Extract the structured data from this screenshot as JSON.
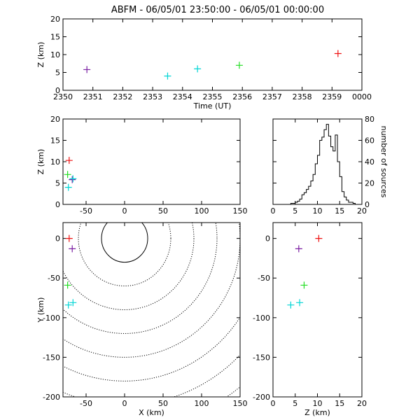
{
  "title": "ABFM - 06/05/01 23:50:00 - 06/05/01 00:00:00",
  "colors": {
    "axes": "#000000",
    "contour": "#000000"
  },
  "sources": [
    {
      "color": "#7b1fa2",
      "time": 2350.8,
      "x": -68,
      "y": -13,
      "z": 5.8
    },
    {
      "color": "#00d5d5",
      "time": 2353.5,
      "x": -73,
      "y": -84,
      "z": 4.0
    },
    {
      "color": "#00d5d5",
      "time": 2354.5,
      "x": -67,
      "y": -81,
      "z": 6.0
    },
    {
      "color": "#22dd22",
      "time": 2355.9,
      "x": -74,
      "y": -59,
      "z": 7.0
    },
    {
      "color": "#ee1111",
      "time": 2359.2,
      "x": -72,
      "y": 0,
      "z": 10.3
    }
  ],
  "chart_data": [
    {
      "id": "time_z",
      "type": "scatter",
      "title": "ABFM - 06/05/01 23:50:00 - 06/05/01 00:00:00",
      "xlabel": "Time (UT)",
      "ylabel": "Z (km)",
      "xlim": [
        2350,
        2360
      ],
      "ylim": [
        0,
        20
      ],
      "xtick_labels": [
        "2350",
        "2351",
        "2352",
        "2353",
        "2354",
        "2355",
        "2356",
        "2357",
        "2358",
        "2359",
        "0000"
      ],
      "yticks": [
        0,
        5,
        10,
        15,
        20
      ],
      "marker": "+",
      "x_field": "time",
      "y_field": "z"
    },
    {
      "id": "x_z",
      "type": "scatter",
      "xlabel": "",
      "ylabel": "Z (km)",
      "xlim": [
        -80,
        150
      ],
      "ylim": [
        0,
        20
      ],
      "xticks": [
        -50,
        0,
        50,
        100,
        150
      ],
      "yticks": [
        0,
        5,
        10,
        15,
        20
      ],
      "marker": "+",
      "x_field": "x",
      "y_field": "z"
    },
    {
      "id": "histogram",
      "type": "bar",
      "xlabel": "",
      "ylabel": "number of sources",
      "xlim": [
        0,
        20
      ],
      "ylim": [
        0,
        80
      ],
      "xticks": [
        0,
        5,
        10,
        15,
        20
      ],
      "yticks": [
        0,
        20,
        40,
        60,
        80
      ],
      "bin_width": 0.5,
      "bin_start": 0,
      "values": [
        0,
        0,
        0,
        0,
        0,
        0,
        0,
        0,
        1,
        1,
        2,
        3,
        5,
        9,
        11,
        14,
        17,
        22,
        28,
        38,
        46,
        60,
        63,
        70,
        75,
        64,
        54,
        50,
        65,
        40,
        26,
        12,
        7,
        4,
        2,
        2,
        1,
        0,
        0,
        0
      ]
    },
    {
      "id": "x_y",
      "type": "scatter",
      "xlabel": "X (km)",
      "ylabel": "Y (km)",
      "xlim": [
        -80,
        150
      ],
      "ylim": [
        -200,
        20
      ],
      "xticks": [
        -50,
        0,
        50,
        100,
        150
      ],
      "yticks": [
        -200,
        -150,
        -100,
        -50,
        0
      ],
      "marker": "+",
      "range_rings_km": [
        30,
        60,
        90,
        120,
        150,
        180,
        210,
        240
      ],
      "ring_center": [
        0,
        0
      ],
      "x_field": "x",
      "y_field": "y"
    },
    {
      "id": "z_y",
      "type": "scatter",
      "xlabel": "Z (km)",
      "ylabel": "",
      "xlim": [
        0,
        20
      ],
      "ylim": [
        -200,
        20
      ],
      "xticks": [
        0,
        5,
        10,
        15,
        20
      ],
      "yticks": [
        -200,
        -150,
        -100,
        -50,
        0
      ],
      "marker": "+",
      "x_field": "z",
      "y_field": "y"
    }
  ]
}
